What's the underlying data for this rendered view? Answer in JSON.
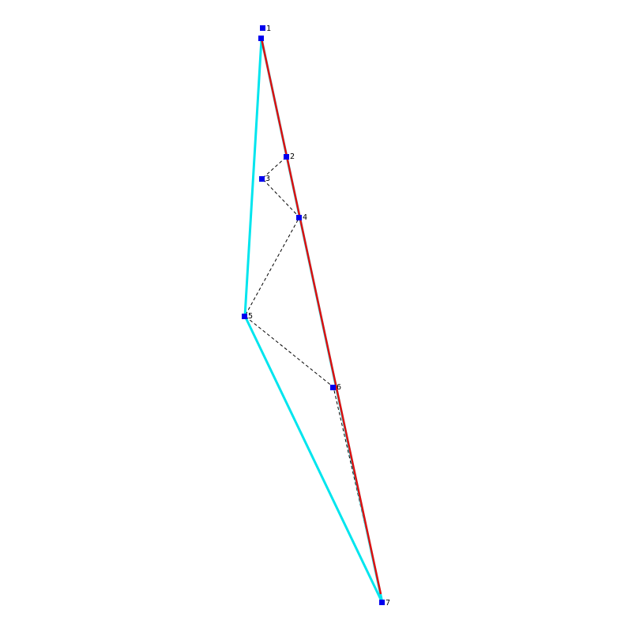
{
  "nodes": [
    {
      "label": "1"
    },
    {
      "label": "2"
    },
    {
      "label": "3"
    },
    {
      "label": "4"
    },
    {
      "label": "5"
    },
    {
      "label": "6"
    },
    {
      "label": "7"
    }
  ]
}
